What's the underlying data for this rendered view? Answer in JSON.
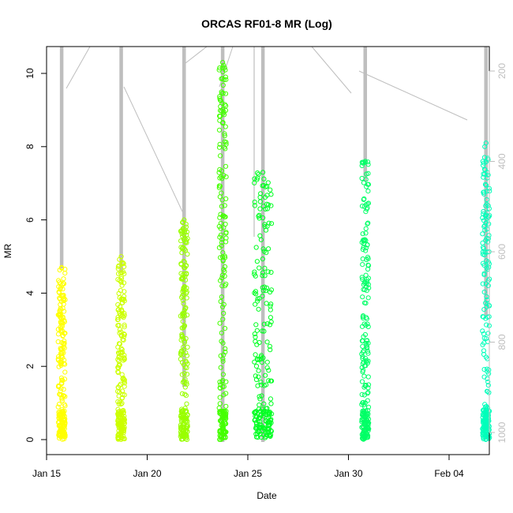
{
  "chart_data": {
    "type": "scatter",
    "title": "ORCAS RF01-8 MR (Log)",
    "xlabel": "Date",
    "ylabel": "MR",
    "x_ticks": [
      "Jan 15",
      "Jan 20",
      "Jan 25",
      "Jan 30",
      "Feb 04"
    ],
    "xlim": [
      "2016-01-15",
      "2016-02-06"
    ],
    "y_ticks": [
      "0",
      "2",
      "4",
      "6",
      "8",
      "10"
    ],
    "ylim": [
      0,
      10.8
    ],
    "y2_ticks": [
      "200",
      "400",
      "600",
      "800",
      "1000"
    ],
    "y2_range": [
      180,
      1050
    ],
    "grid": false,
    "series": [
      {
        "color": "#FFFF00",
        "x": "2016-01-15 18:00",
        "mr_max": 4.7
      },
      {
        "color": "#CCFF00",
        "x": "2016-01-18 17:00",
        "mr_max": 5.0
      },
      {
        "color": "#99FF00",
        "x": "2016-01-21 20:00",
        "mr_max": 6.0
      },
      {
        "color": "#44FF00",
        "x": "2016-01-23 18:00",
        "mr_max": 10.3
      },
      {
        "color": "#00FF22",
        "x": "2016-01-25 18:00",
        "mr_max": 7.3
      },
      {
        "color": "#00FF66",
        "x": "2016-01-30 20:00",
        "mr_max": 7.6
      },
      {
        "color": "#00FFBB",
        "x": "2016-02-05 20:00",
        "mr_max": 8.1
      }
    ],
    "pressure_line_color": "#BEBEBE"
  }
}
